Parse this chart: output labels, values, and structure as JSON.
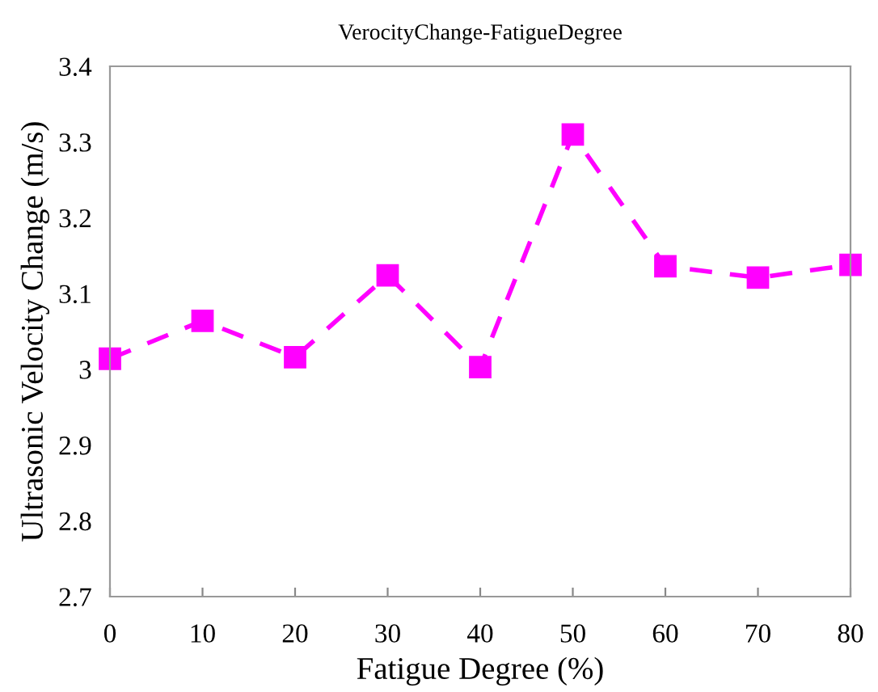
{
  "chart_data": {
    "type": "line",
    "title": "VerocityChange-FatigueDegree",
    "xlabel": "Fatigue Degree (%)",
    "ylabel": "Ultrasonic Velocity Change (m/s)",
    "x": [
      0,
      10,
      20,
      30,
      40,
      50,
      60,
      70,
      80
    ],
    "series": [
      {
        "color": "#ff00ff",
        "values": [
          3.014,
          3.064,
          3.016,
          3.124,
          3.003,
          3.31,
          3.136,
          3.121,
          3.138
        ]
      }
    ],
    "xlim": [
      0,
      80
    ],
    "xticks": [
      0,
      10,
      20,
      30,
      40,
      50,
      60,
      70,
      80
    ],
    "ylim": [
      2.7,
      3.4
    ],
    "yticks": [
      2.7,
      2.8,
      2.9,
      3,
      3.1,
      3.2,
      3.3,
      3.4
    ],
    "marker": "square",
    "line_style": "dashed",
    "grid": false
  }
}
